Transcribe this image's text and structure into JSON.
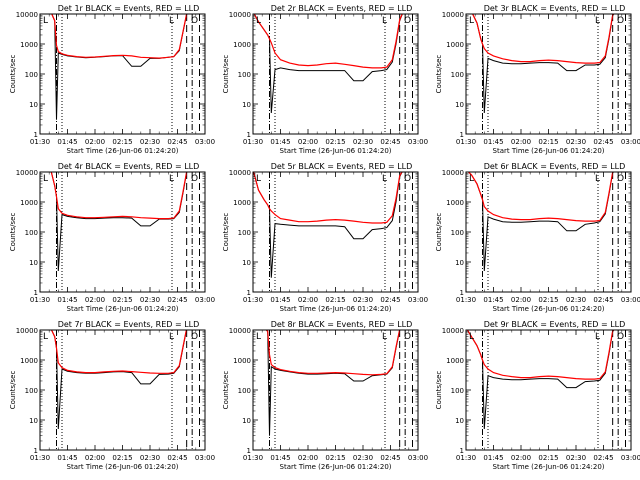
{
  "chart_data": {
    "type": "line",
    "y_scale": "log",
    "ylim": [
      1,
      10000
    ],
    "y_ticks": [
      "1",
      "10",
      "100",
      "1000",
      "10000"
    ],
    "xlim": [
      "01:30",
      "03:00"
    ],
    "x_ticks": [
      "01:30",
      "01:45",
      "02:00",
      "02:15",
      "02:30",
      "02:45",
      "03:00"
    ],
    "ylabel": "Counts/sec",
    "xlabel": "Start Time (26-Jun-06 01:24:20)",
    "legend_markers": [
      "L",
      "O"
    ],
    "colors": {
      "events": "#000000",
      "lld": "#ff0000"
    },
    "vertical_lines": {
      "dotted": [
        "01:42",
        "02:42"
      ],
      "dashdot": [
        "01:39",
        "02:53"
      ],
      "dashed": [
        "02:50",
        "02:57"
      ]
    },
    "x": [
      "01:30",
      "01:33",
      "01:36",
      "01:38",
      "01:39",
      "01:40",
      "01:42",
      "01:45",
      "01:50",
      "01:55",
      "02:00",
      "02:05",
      "02:10",
      "02:15",
      "02:20",
      "02:25",
      "02:30",
      "02:35",
      "02:40",
      "02:43",
      "02:46",
      "02:48",
      "02:50",
      "02:52",
      "02:54"
    ],
    "panels": [
      {
        "title": "Det 1r BLACK = Events, RED = LLD",
        "series": [
          {
            "name": "Events",
            "values": [
              12000,
              12000,
              11500,
              6000,
              3,
              500,
              450,
              400,
              370,
              350,
              360,
              380,
              400,
              410,
              180,
              180,
              330,
              330,
              360,
              380,
              600,
              2500,
              10000,
              12000,
              12000
            ]
          },
          {
            "name": "LLD",
            "values": [
              12000,
              12000,
              11500,
              6000,
              900,
              560,
              470,
              420,
              380,
              360,
              370,
              390,
              410,
              420,
              400,
              360,
              350,
              340,
              360,
              380,
              650,
              2600,
              10500,
              12000,
              12000
            ]
          }
        ]
      },
      {
        "title": "Det 2r BLACK = Events, RED = LLD",
        "series": [
          {
            "name": "Events",
            "values": [
              12000,
              5500,
              3000,
              2000,
              1500,
              5,
              140,
              160,
              140,
              130,
              130,
              130,
              130,
              130,
              130,
              60,
              60,
              120,
              130,
              140,
              250,
              1000,
              6000,
              12000,
              12000
            ]
          },
          {
            "name": "LLD",
            "values": [
              12000,
              5500,
              3000,
              2000,
              1500,
              1100,
              500,
              300,
              230,
              200,
              190,
              200,
              220,
              230,
              210,
              190,
              170,
              160,
              160,
              170,
              300,
              1200,
              6500,
              12000,
              12000
            ]
          }
        ]
      },
      {
        "title": "Det 3r BLACK = Events, RED = LLD",
        "series": [
          {
            "name": "Events",
            "values": [
              12000,
              12000,
              5000,
              1500,
              1000,
              5,
              330,
              280,
              230,
              220,
              220,
              230,
              240,
              240,
              230,
              130,
              130,
              200,
              200,
              210,
              350,
              1500,
              9000,
              12000,
              12000
            ]
          },
          {
            "name": "LLD",
            "values": [
              12000,
              12000,
              5000,
              1500,
              1000,
              700,
              500,
              400,
              320,
              280,
              260,
              260,
              280,
              290,
              280,
              260,
              240,
              230,
              230,
              240,
              400,
              1700,
              9500,
              12000,
              12000
            ]
          }
        ]
      },
      {
        "title": "Det 4r BLACK = Events, RED = LLD",
        "series": [
          {
            "name": "Events",
            "values": [
              12000,
              12000,
              11000,
              3500,
              1500,
              5,
              380,
              330,
              300,
              280,
              280,
              290,
              300,
              300,
              290,
              160,
              160,
              270,
              270,
              280,
              450,
              2000,
              10000,
              12000,
              12000
            ]
          },
          {
            "name": "LLD",
            "values": [
              12000,
              12000,
              11000,
              3500,
              1500,
              600,
              420,
              360,
              320,
              300,
              300,
              310,
              320,
              330,
              320,
              300,
              290,
              280,
              280,
              290,
              500,
              2200,
              10500,
              12000,
              12000
            ]
          }
        ]
      },
      {
        "title": "Det 5r BLACK = Events, RED = LLD",
        "series": [
          {
            "name": "Events",
            "values": [
              12000,
              2500,
              1200,
              800,
              600,
              3,
              190,
              180,
              170,
              160,
              160,
              160,
              160,
              160,
              150,
              60,
              60,
              120,
              130,
              140,
              240,
              1000,
              7000,
              12000,
              12000
            ]
          },
          {
            "name": "LLD",
            "values": [
              12000,
              2500,
              1200,
              800,
              600,
              500,
              380,
              280,
              250,
              220,
              220,
              230,
              250,
              260,
              250,
              230,
              210,
              200,
              200,
              210,
              350,
              1300,
              7500,
              12000,
              12000
            ]
          }
        ]
      },
      {
        "title": "Det 6r BLACK = Events, RED = LLD",
        "series": [
          {
            "name": "Events",
            "values": [
              12000,
              8000,
              4000,
              1800,
              1200,
              5,
              320,
              270,
              220,
              210,
              210,
              220,
              230,
              230,
              220,
              110,
              110,
              180,
              200,
              220,
              400,
              1800,
              9500,
              12000,
              12000
            ]
          },
          {
            "name": "LLD",
            "values": [
              12000,
              8000,
              4000,
              1800,
              1200,
              700,
              500,
              380,
              300,
              270,
              260,
              260,
              280,
              290,
              280,
              260,
              240,
              230,
              230,
              240,
              450,
              2000,
              10000,
              12000,
              12000
            ]
          }
        ]
      },
      {
        "title": "Det 7r BLACK = Events, RED = LLD",
        "series": [
          {
            "name": "Events",
            "values": [
              12000,
              12000,
              11000,
              6000,
              2500,
              5,
              500,
              420,
              380,
              360,
              360,
              380,
              400,
              410,
              380,
              160,
              160,
              330,
              340,
              360,
              600,
              2600,
              11000,
              12000,
              12000
            ]
          },
          {
            "name": "LLD",
            "values": [
              12000,
              12000,
              11000,
              6000,
              2500,
              800,
              560,
              450,
              400,
              380,
              380,
              400,
              420,
              430,
              410,
              390,
              370,
              360,
              360,
              380,
              650,
              2800,
              11500,
              12000,
              12000
            ]
          }
        ]
      },
      {
        "title": "Det 8r BLACK = Events, RED = LLD",
        "series": [
          {
            "name": "Events",
            "values": [
              12000,
              12000,
              12000,
              9000,
              3,
              600,
              500,
              450,
              400,
              360,
              340,
              340,
              350,
              360,
              350,
              200,
              200,
              300,
              320,
              340,
              550,
              2500,
              10000,
              12000,
              12000
            ]
          },
          {
            "name": "LLD",
            "values": [
              12000,
              12000,
              12000,
              9000,
              1500,
              700,
              560,
              480,
              420,
              380,
              360,
              360,
              370,
              380,
              370,
              350,
              330,
              320,
              330,
              350,
              600,
              2700,
              10500,
              12000,
              12000
            ]
          }
        ]
      },
      {
        "title": "Det 9r BLACK = Events, RED = LLD",
        "series": [
          {
            "name": "Events",
            "values": [
              12000,
              6000,
              3000,
              1500,
              1000,
              5,
              300,
              260,
              230,
              220,
              220,
              230,
              240,
              240,
              230,
              120,
              120,
              190,
              200,
              210,
              360,
              1600,
              9000,
              12000,
              12000
            ]
          },
          {
            "name": "LLD",
            "values": [
              12000,
              6000,
              3000,
              1500,
              1000,
              700,
              500,
              380,
              310,
              280,
              260,
              260,
              280,
              290,
              280,
              260,
              240,
              230,
              230,
              240,
              400,
              1800,
              9500,
              12000,
              12000
            ]
          }
        ]
      }
    ]
  }
}
